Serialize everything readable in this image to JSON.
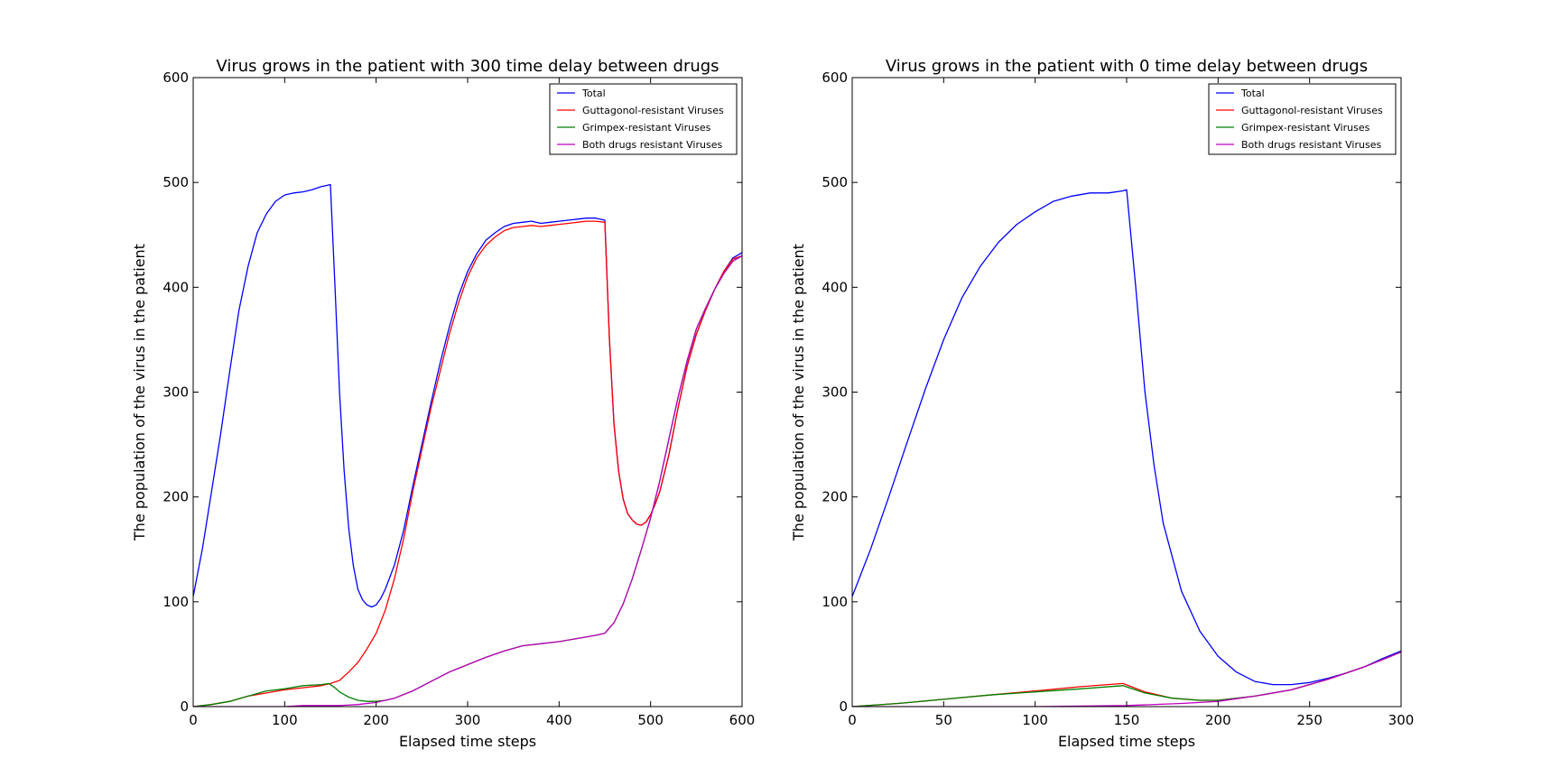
{
  "chart_data": [
    {
      "type": "line",
      "title": "Virus grows in the patient with 300 time delay between drugs",
      "xlabel": "Elapsed time steps",
      "ylabel": "The population of the virus in the patient",
      "xlim": [
        0,
        600
      ],
      "ylim": [
        0,
        600
      ],
      "xticks": [
        0,
        100,
        200,
        300,
        400,
        500,
        600
      ],
      "yticks": [
        0,
        100,
        200,
        300,
        400,
        500,
        600
      ],
      "grid": false,
      "legend": "top-right",
      "series": [
        {
          "name": "Total",
          "color": "#0000ff",
          "x": [
            0,
            10,
            20,
            30,
            40,
            50,
            60,
            70,
            80,
            90,
            100,
            110,
            120,
            130,
            140,
            145,
            150,
            155,
            160,
            165,
            170,
            175,
            180,
            185,
            190,
            195,
            200,
            205,
            210,
            220,
            230,
            240,
            250,
            260,
            270,
            280,
            290,
            300,
            310,
            320,
            330,
            340,
            350,
            360,
            370,
            380,
            390,
            400,
            410,
            420,
            430,
            440,
            450,
            455,
            460,
            465,
            470,
            475,
            480,
            485,
            490,
            495,
            500,
            505,
            510,
            520,
            530,
            540,
            550,
            560,
            570,
            580,
            590,
            600
          ],
          "y": [
            105,
            150,
            205,
            260,
            320,
            378,
            420,
            452,
            470,
            482,
            488,
            490,
            491,
            493,
            496,
            497,
            498,
            400,
            300,
            225,
            170,
            135,
            112,
            102,
            97,
            95,
            97,
            103,
            112,
            135,
            168,
            210,
            250,
            290,
            328,
            362,
            392,
            415,
            432,
            445,
            452,
            458,
            461,
            462,
            463,
            461,
            462,
            463,
            464,
            465,
            466,
            466,
            464,
            350,
            270,
            225,
            198,
            184,
            178,
            174,
            173,
            176,
            183,
            193,
            205,
            240,
            285,
            325,
            355,
            378,
            398,
            415,
            428,
            433
          ]
        },
        {
          "name": "Guttagonol-resistant Viruses",
          "color": "#ff0000",
          "x": [
            0,
            20,
            40,
            60,
            80,
            100,
            120,
            140,
            150,
            160,
            170,
            180,
            190,
            200,
            210,
            220,
            230,
            240,
            250,
            260,
            270,
            280,
            290,
            300,
            310,
            320,
            330,
            340,
            350,
            360,
            370,
            380,
            390,
            400,
            410,
            420,
            430,
            440,
            450,
            455,
            460,
            465,
            470,
            475,
            480,
            485,
            490,
            495,
            500,
            505,
            510,
            520,
            530,
            540,
            550,
            560,
            570,
            580,
            590,
            600
          ],
          "y": [
            0,
            2,
            5,
            10,
            13,
            16,
            18,
            20,
            22,
            25,
            33,
            42,
            55,
            70,
            92,
            122,
            160,
            205,
            245,
            285,
            320,
            355,
            385,
            410,
            428,
            440,
            448,
            454,
            457,
            458,
            459,
            458,
            459,
            460,
            461,
            462,
            463,
            463,
            462,
            350,
            270,
            225,
            198,
            184,
            178,
            174,
            173,
            176,
            183,
            193,
            205,
            240,
            285,
            325,
            355,
            378,
            398,
            415,
            427,
            430
          ]
        },
        {
          "name": "Grimpex-resistant Viruses",
          "color": "#008000",
          "x": [
            0,
            20,
            40,
            60,
            80,
            100,
            120,
            140,
            148,
            155,
            160,
            170,
            180,
            190,
            200,
            210,
            220,
            240,
            260,
            280,
            300,
            320,
            340,
            360,
            380,
            400,
            420,
            440,
            450,
            460,
            470,
            480,
            490,
            500,
            510,
            520,
            530,
            540,
            550,
            560,
            570,
            580,
            590,
            600
          ],
          "y": [
            0,
            2,
            5,
            10,
            15,
            17,
            20,
            21,
            22,
            18,
            14,
            9,
            6,
            5,
            5,
            6,
            8,
            15,
            24,
            33,
            40,
            47,
            53,
            58,
            60,
            62,
            65,
            68,
            70,
            80,
            98,
            122,
            150,
            180,
            215,
            255,
            295,
            330,
            360,
            380,
            398,
            413,
            425,
            430
          ]
        },
        {
          "name": "Both drugs resistant Viruses",
          "color": "#bf00bf",
          "x": [
            0,
            20,
            40,
            60,
            80,
            100,
            120,
            140,
            160,
            180,
            200,
            210,
            220,
            240,
            260,
            280,
            300,
            320,
            340,
            360,
            380,
            400,
            420,
            440,
            450,
            460,
            470,
            480,
            490,
            500,
            510,
            520,
            530,
            540,
            550,
            560,
            570,
            580,
            590,
            600
          ],
          "y": [
            0,
            0,
            0,
            0,
            0,
            0,
            1,
            1,
            1,
            2,
            4,
            6,
            8,
            15,
            24,
            33,
            40,
            47,
            53,
            58,
            60,
            62,
            65,
            68,
            70,
            80,
            98,
            122,
            150,
            180,
            215,
            255,
            295,
            330,
            360,
            380,
            398,
            413,
            425,
            430
          ]
        }
      ]
    },
    {
      "type": "line",
      "title": "Virus grows in the patient with 0 time delay between drugs",
      "xlabel": "Elapsed time steps",
      "ylabel": "The population of the virus in the patient",
      "xlim": [
        0,
        300
      ],
      "ylim": [
        0,
        600
      ],
      "xticks": [
        0,
        50,
        100,
        150,
        200,
        250,
        300
      ],
      "yticks": [
        0,
        100,
        200,
        300,
        400,
        500,
        600
      ],
      "grid": false,
      "legend": "top-right",
      "series": [
        {
          "name": "Total",
          "color": "#0000ff",
          "x": [
            0,
            10,
            20,
            30,
            40,
            50,
            60,
            70,
            80,
            90,
            100,
            110,
            120,
            130,
            140,
            148,
            150,
            155,
            160,
            165,
            170,
            180,
            190,
            200,
            210,
            220,
            230,
            240,
            250,
            260,
            270,
            280,
            290,
            300
          ],
          "y": [
            105,
            150,
            200,
            252,
            303,
            350,
            390,
            420,
            443,
            460,
            472,
            482,
            487,
            490,
            490,
            492,
            493,
            400,
            300,
            230,
            175,
            110,
            72,
            48,
            33,
            24,
            21,
            21,
            23,
            27,
            32,
            38,
            46,
            53
          ]
        },
        {
          "name": "Guttagonol-resistant Viruses",
          "color": "#ff0000",
          "x": [
            0,
            25,
            50,
            75,
            100,
            125,
            148,
            160,
            175,
            190,
            200,
            220,
            240,
            260,
            280,
            300
          ],
          "y": [
            0,
            3,
            7,
            11,
            15,
            19,
            22,
            14,
            8,
            6,
            6,
            10,
            16,
            26,
            38,
            52
          ]
        },
        {
          "name": "Grimpex-resistant Viruses",
          "color": "#008000",
          "x": [
            0,
            25,
            50,
            75,
            100,
            125,
            148,
            160,
            175,
            190,
            200,
            220,
            240,
            260,
            280,
            300
          ],
          "y": [
            0,
            3,
            7,
            11,
            14,
            17,
            20,
            13,
            8,
            6,
            6,
            10,
            16,
            26,
            38,
            52
          ]
        },
        {
          "name": "Both drugs resistant Viruses",
          "color": "#bf00bf",
          "x": [
            0,
            50,
            100,
            150,
            180,
            200,
            220,
            240,
            260,
            280,
            300
          ],
          "y": [
            0,
            0,
            0,
            1,
            3,
            5,
            10,
            16,
            26,
            38,
            52
          ]
        }
      ]
    }
  ]
}
